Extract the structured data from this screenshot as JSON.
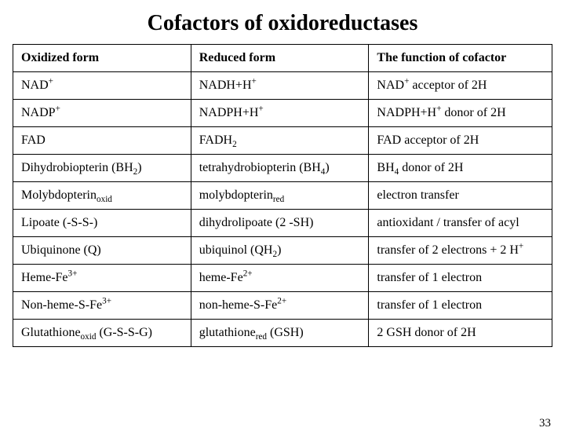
{
  "title": "Cofactors of oxidoreductases",
  "page_number": "33",
  "table": {
    "columns": [
      "Oxidized form",
      "Reduced form",
      "The function of cofactor"
    ],
    "rows": [
      {
        "ox": "NAD{+}",
        "red": "NADH+H{+}",
        "func": "NAD{+} acceptor of 2H"
      },
      {
        "ox": "NADP{+}",
        "red": "NADPH+H{+}",
        "func": "NADPH+H{+} donor of 2H"
      },
      {
        "ox": "FAD",
        "red": "FADH{_2}",
        "func": "FAD acceptor of 2H"
      },
      {
        "ox": "Dihydrobiopterin (BH{_2})",
        "red": "tetrahydrobiopterin (BH{_4})",
        "func": "BH{_4} donor of 2H"
      },
      {
        "ox": "Molybdopterin{_oxid}",
        "red": "molybdopterin{_red}",
        "func": "electron transfer"
      },
      {
        "ox": "Lipoate (-S-S-)",
        "red": "dihydrolipoate (2 -SH)",
        "func": "antioxidant / transfer of acyl"
      },
      {
        "ox": "Ubiquinone (Q)",
        "red": "ubiquinol (QH{_2})",
        "func": "transfer of 2 electrons + 2 H{+}"
      },
      {
        "ox": "Heme-Fe{3+}",
        "red": "heme-Fe{2+}",
        "func": "transfer of 1 electron"
      },
      {
        "ox": "Non-heme-S-Fe{3+}",
        "red": "non-heme-S-Fe{2+}",
        "func": "transfer of 1 electron"
      },
      {
        "ox": "Glutathione{_oxid} (G-S-S-G)",
        "red": "glutathione{_red} (GSH)",
        "func": "2 GSH donor of 2H"
      }
    ]
  },
  "styles": {
    "title_fontsize": 28,
    "cell_fontsize": 16,
    "border_color": "#000000",
    "background": "#ffffff",
    "text_color": "#000000"
  }
}
